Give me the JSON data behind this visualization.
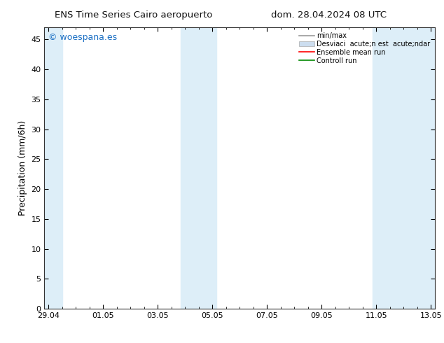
{
  "title_left": "ENS Time Series Cairo aeropuerto",
  "title_right": "dom. 28.04.2024 08 UTC",
  "ylabel": "Precipitation (mm/6h)",
  "background_color": "#ffffff",
  "plot_bg_color": "#ffffff",
  "ylim": [
    0,
    47
  ],
  "yticks": [
    0,
    5,
    10,
    15,
    20,
    25,
    30,
    35,
    40,
    45
  ],
  "xlabel_ticks": [
    "29.04",
    "01.05",
    "03.05",
    "05.05",
    "07.05",
    "09.05",
    "11.05",
    "13.05"
  ],
  "band_color": "#ddeef8",
  "watermark_text": "© woespana.es",
  "watermark_color": "#1a6fc4",
  "legend_label_minmax": "min/max",
  "legend_label_std": "Desviaci  acute;n est  acute;ndar",
  "legend_label_ensemble": "Ensemble mean run",
  "legend_label_control": "Controll run",
  "legend_color_minmax": "#999999",
  "legend_color_std": "#ccddef",
  "legend_color_ensemble": "#ff0000",
  "legend_color_control": "#008800",
  "shaded_bands": [
    {
      "xmin": -0.15,
      "xmax": 0.5
    },
    {
      "xmin": 4.85,
      "xmax": 6.15
    },
    {
      "xmin": 11.85,
      "xmax": 14.15
    }
  ],
  "xlim": [
    -0.15,
    14.15
  ],
  "x_ticks_pos": [
    0,
    2,
    4,
    6,
    8,
    10,
    12,
    14
  ]
}
